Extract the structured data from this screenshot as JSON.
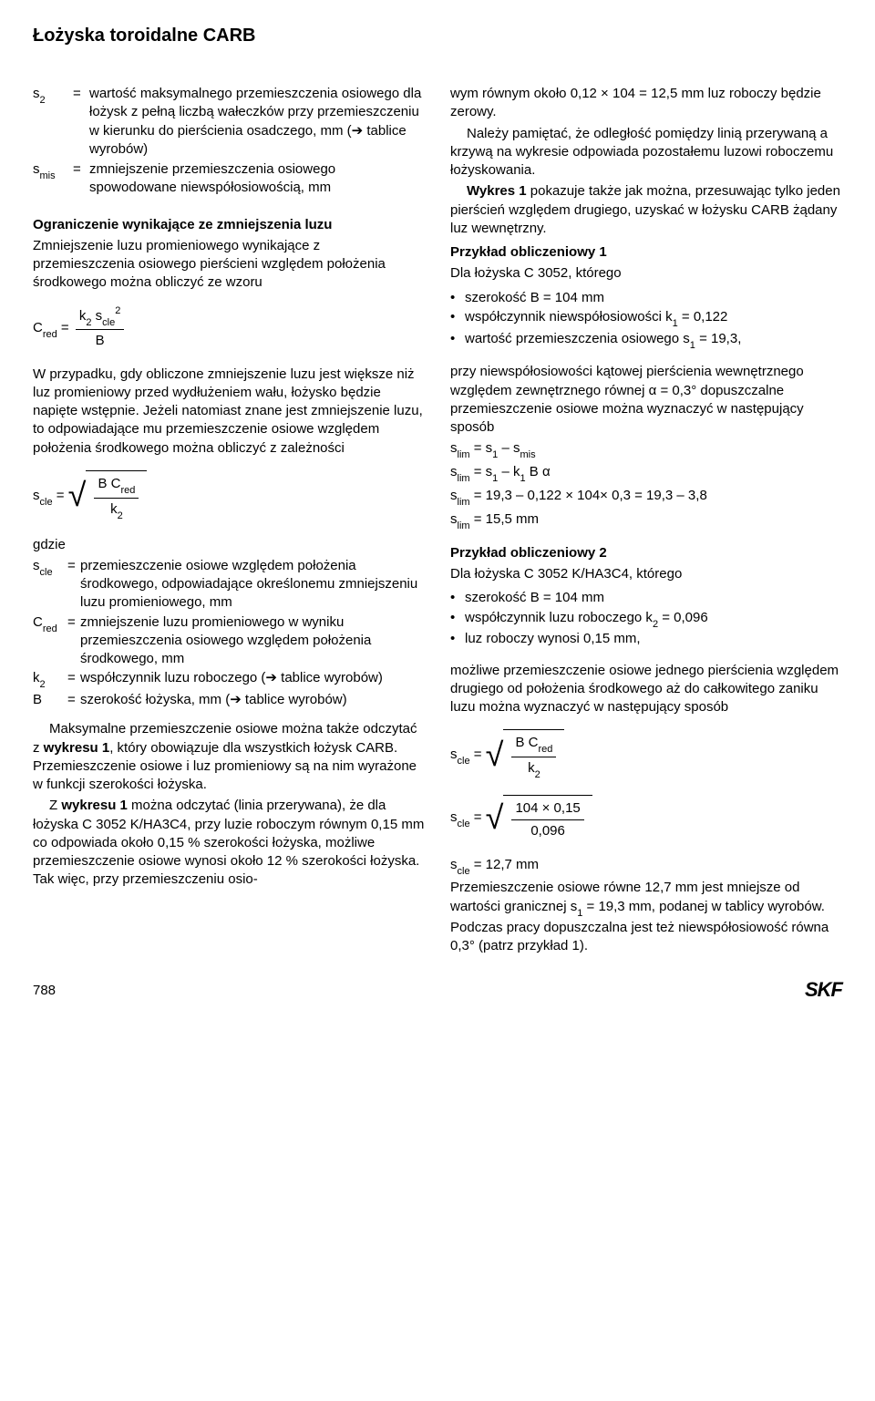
{
  "title": "Łożyska toroidalne CARB",
  "left": {
    "defs": [
      {
        "sym": "s<span class='sub'>2</span>",
        "eq": "=",
        "txt": "wartość maksymalnego przemieszczenia osiowego dla łożysk z pełną liczbą wałeczków przy przemieszczeniu w kierunku do pierścienia osadczego, mm (➔ tablice wyrobów)"
      },
      {
        "sym": "s<span class='sub'>mis</span>",
        "eq": "=",
        "txt": "zmniejszenie przemieszczenia osiowego spowodowane niewspółosiowością, mm"
      }
    ],
    "sect1_head": "Ograniczenie wynikające ze zmniejszenia luzu",
    "sect1_txt": "Zmniejszenie luzu promieniowego wynikające z przemieszczenia osiowego pierścieni względem położenia środkowego można obliczyć ze wzoru",
    "cred_formula": {
      "lhs": "C<span class='sub'>red</span> =",
      "num": "k<span class='sub'>2</span> s<span class='sub'>cle</span><span class='sup'>2</span>",
      "den": "B"
    },
    "p2a": "W przypadku, gdy obliczone zmniejszenie luzu jest większe niż luz promieniowy przed wydłużeniem wału, łożysko będzie napięte wstępnie. Jeżeli natomiast znane jest zmniejszenie luzu, to odpowiadające mu przemieszczenie osiowe względem położenia środkowego można obliczyć z zależności",
    "scle_formula": {
      "lhs": "s<span class='sub'>cle</span> =",
      "num": "B C<span class='sub'>red</span>",
      "den": "k<span class='sub'>2</span>"
    },
    "gdzie_label": "gdzie",
    "gdzie": [
      {
        "sym": "s<span class='sub'>cle</span>",
        "eq": "=",
        "txt": "przemieszczenie osiowe względem położenia środkowego, odpowiadające określonemu zmniejszeniu luzu promieniowego, mm"
      },
      {
        "sym": "C<span class='sub'>red</span>",
        "eq": "=",
        "txt": "zmniejszenie luzu promieniowego w wyniku przemieszczenia osiowego względem położenia środkowego, mm"
      },
      {
        "sym": "k<span class='sub'>2</span>",
        "eq": "=",
        "txt": "współczynnik luzu roboczego (➔ tablice wyrobów)"
      },
      {
        "sym": "B",
        "eq": "=",
        "txt": "szerokość łożyska, mm (➔ tablice wyrobów)"
      }
    ],
    "p3a": "Maksymalne przemieszczenie osiowe można także odczytać z <b>wykresu 1</b>, który obowiązuje dla wszystkich łożysk CARB. Przemieszczenie osiowe i luz promieniowy są na nim wyrażone w funkcji szerokości łożyska.",
    "p3b": "Z <b>wykresu 1</b> można odczytać (linia przerywana), że dla łożyska C 3052 K/HA3C4, przy luzie roboczym równym 0,15 mm co odpowiada około 0,15 % szerokości łożyska, możliwe przemieszczenie osiowe wynosi około 12 % szerokości łożyska. Tak więc, przy przemieszczeniu osio-"
  },
  "right": {
    "cont": "wym równym około 0,12 × 104 = 12,5 mm luz roboczy będzie zerowy.",
    "p1a": "Należy pamiętać, że odległość pomiędzy linią przerywaną a krzywą na wykresie odpowiada pozostałemu luzowi roboczemu łożyskowania.",
    "p1b": "<b>Wykres 1</b> pokazuje także jak można, przesuwając tylko jeden pierścień względem drugiego, uzyskać w łożysku CARB żądany luz wewnętrzny.",
    "ex1_head": "Przykład obliczeniowy 1",
    "ex1_intro": "Dla łożyska C 3052, którego",
    "ex1_bullets": [
      "szerokość B = 104 mm",
      "współczynnik niewspółosiowości k<span class='sub'>1</span> = 0,122",
      "wartość przemieszczenia osiowego s<span class='sub'>1</span> = 19,3,"
    ],
    "ex1_p": "przy niewspółosiowości kątowej pierścienia wewnętrznego względem zewnętrznego równej α = 0,3° dopuszczalne przemieszczenie osiowe można wyznaczyć w następujący sposób",
    "ex1_lines": [
      "s<span class='sub'>lim</span> = s<span class='sub'>1</span> – s<span class='sub'>mis</span>",
      "s<span class='sub'>lim</span> = s<span class='sub'>1</span> – k<span class='sub'>1</span> B α",
      "s<span class='sub'>lim</span> = 19,3 – 0,122 × 104× 0,3 = 19,3 – 3,8",
      "s<span class='sub'>lim</span> = 15,5 mm"
    ],
    "ex2_head": "Przykład obliczeniowy 2",
    "ex2_intro": "Dla łożyska C 3052 K/HA3C4, którego",
    "ex2_bullets": [
      "szerokość B = 104 mm",
      "współczynnik luzu roboczego k<span class='sub'>2</span> = 0,096",
      "luz roboczy wynosi 0,15 mm,"
    ],
    "ex2_p": "możliwe przemieszczenie osiowe jednego pierścienia względem drugiego od położenia środkowego aż do całkowitego zaniku luzu można wyznaczyć w następujący sposób",
    "ex2_f1": {
      "lhs": "s<span class='sub'>cle</span> =",
      "num": "B C<span class='sub'>red</span>",
      "den": "k<span class='sub'>2</span>"
    },
    "ex2_f2": {
      "lhs": "s<span class='sub'>cle</span> =",
      "num": "104 × 0,15",
      "den": "0,096"
    },
    "ex2_res": "s<span class='sub'>cle</span> = 12,7 mm",
    "ex2_concl": "Przemieszczenie osiowe równe 12,7 mm jest mniejsze od wartości granicznej s<span class='sub'>1</span> = 19,3 mm, podanej w tablicy wyrobów. Podczas pracy dopuszczalna jest też niewspółosiowość równa 0,3° (patrz przykład 1)."
  },
  "footer": {
    "page": "788",
    "brand": "SKF"
  }
}
